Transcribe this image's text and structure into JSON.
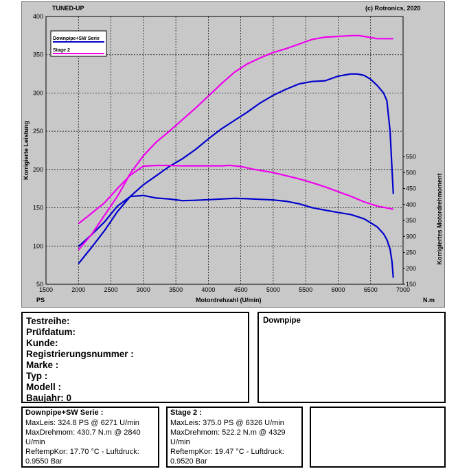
{
  "chart_data": {
    "type": "line",
    "title": "TUNED-UP",
    "copyright": "(c) Rotronics, 2020",
    "xlabel": "Motordrehzahl (U/min)",
    "x_unit_left": "PS",
    "x_unit_right": "N.m",
    "ylabel_left": "Korrigierte Leistung",
    "ylabel_right": "Korrigiertes Motordrehmoment",
    "xlim": [
      1500,
      7000
    ],
    "xticks": [
      1500,
      2000,
      2500,
      3000,
      3500,
      4000,
      4500,
      5000,
      5500,
      6000,
      6500,
      7000
    ],
    "ylim_left": [
      50,
      400
    ],
    "yticks_left": [
      50,
      100,
      150,
      200,
      250,
      300,
      350,
      400
    ],
    "ylim_right": [
      150,
      550
    ],
    "yticks_right": [
      150,
      200,
      250,
      300,
      350,
      400,
      450,
      500,
      550
    ],
    "grid": true,
    "legend_position": "top-left",
    "series": [
      {
        "name": "Downpipe+SW Serie",
        "axis": "left",
        "quantity": "power",
        "color": "#0000cc",
        "x": [
          2000,
          2200,
          2400,
          2600,
          2800,
          3000,
          3200,
          3400,
          3600,
          3800,
          4000,
          4200,
          4400,
          4600,
          4800,
          5000,
          5200,
          5400,
          5600,
          5800,
          6000,
          6200,
          6300,
          6400,
          6500,
          6600,
          6700,
          6750,
          6800,
          6830,
          6850
        ],
        "y": [
          77,
          98,
          120,
          145,
          165,
          180,
          192,
          204,
          214,
          226,
          240,
          253,
          264,
          275,
          287,
          297,
          305,
          312,
          315,
          316,
          322,
          325,
          324.8,
          323,
          318,
          310,
          300,
          290,
          250,
          200,
          168
        ]
      },
      {
        "name": "Downpipe+SW Serie",
        "axis": "right",
        "quantity": "torque",
        "color": "#0000cc",
        "x": [
          2000,
          2200,
          2400,
          2600,
          2800,
          3000,
          3200,
          3400,
          3600,
          3800,
          4000,
          4200,
          4400,
          4600,
          4800,
          5000,
          5200,
          5400,
          5600,
          5800,
          6000,
          6200,
          6400,
          6600,
          6700,
          6750,
          6800,
          6830,
          6850
        ],
        "y": [
          268,
          305,
          345,
          395,
          425,
          428,
          420,
          417,
          412,
          413,
          415,
          417,
          419,
          418,
          416,
          414,
          410,
          402,
          390,
          382,
          375,
          368,
          355,
          330,
          308,
          290,
          260,
          220,
          170
        ]
      },
      {
        "name": "Stage 2",
        "axis": "left",
        "quantity": "power",
        "color": "#ee00ee",
        "x": [
          2000,
          2200,
          2400,
          2600,
          2800,
          3000,
          3200,
          3400,
          3600,
          3800,
          4000,
          4200,
          4400,
          4600,
          4800,
          5000,
          5200,
          5400,
          5600,
          5800,
          6000,
          6200,
          6326,
          6400,
          6600,
          6850
        ],
        "y": [
          95,
          115,
          140,
          165,
          195,
          218,
          236,
          250,
          265,
          280,
          296,
          312,
          327,
          338,
          346,
          353,
          358,
          364,
          370,
          373,
          374,
          375,
          375,
          374,
          371,
          371
        ]
      },
      {
        "name": "Stage 2",
        "axis": "right",
        "quantity": "torque",
        "color": "#ee00ee",
        "x": [
          2000,
          2200,
          2400,
          2600,
          2800,
          3000,
          3200,
          3400,
          3600,
          3800,
          4000,
          4200,
          4329,
          4500,
          4700,
          5000,
          5200,
          5400,
          5600,
          5800,
          6000,
          6200,
          6400,
          6600,
          6850
        ],
        "y": [
          340,
          372,
          405,
          450,
          492,
          520,
          522,
          522,
          521,
          521,
          521,
          521,
          522.2,
          519,
          510,
          500,
          490,
          480,
          468,
          455,
          440,
          425,
          408,
          395,
          385
        ]
      }
    ]
  },
  "panels": {
    "test_info": {
      "lines": [
        "Testreihe:",
        "Prüfdatum:",
        "Kunde:",
        "Registrierungsnummer  :",
        "Marke  :",
        "Typ  :",
        "Modell  :",
        "Baujahr: 0"
      ]
    },
    "note": {
      "text": "Downpipe"
    },
    "results": [
      {
        "title": "Downpipe+SW Serie :",
        "lines": [
          "MaxLeis: 324.8 PS @ 6271 U/min",
          "MaxDrehmom: 430.7 N.m @ 2840",
          "U/min",
          "ReftempKor: 17.70 °C - Luftdruck:",
          "0.9550 Bar"
        ]
      },
      {
        "title": "Stage 2 :",
        "lines": [
          "MaxLeis: 375.0 PS @ 6326 U/min",
          "MaxDrehmom: 522.2 N.m @ 4329",
          "U/min",
          "ReftempKor: 19.47 °C - Luftdruck:",
          "0.9520 Bar"
        ]
      }
    ]
  }
}
